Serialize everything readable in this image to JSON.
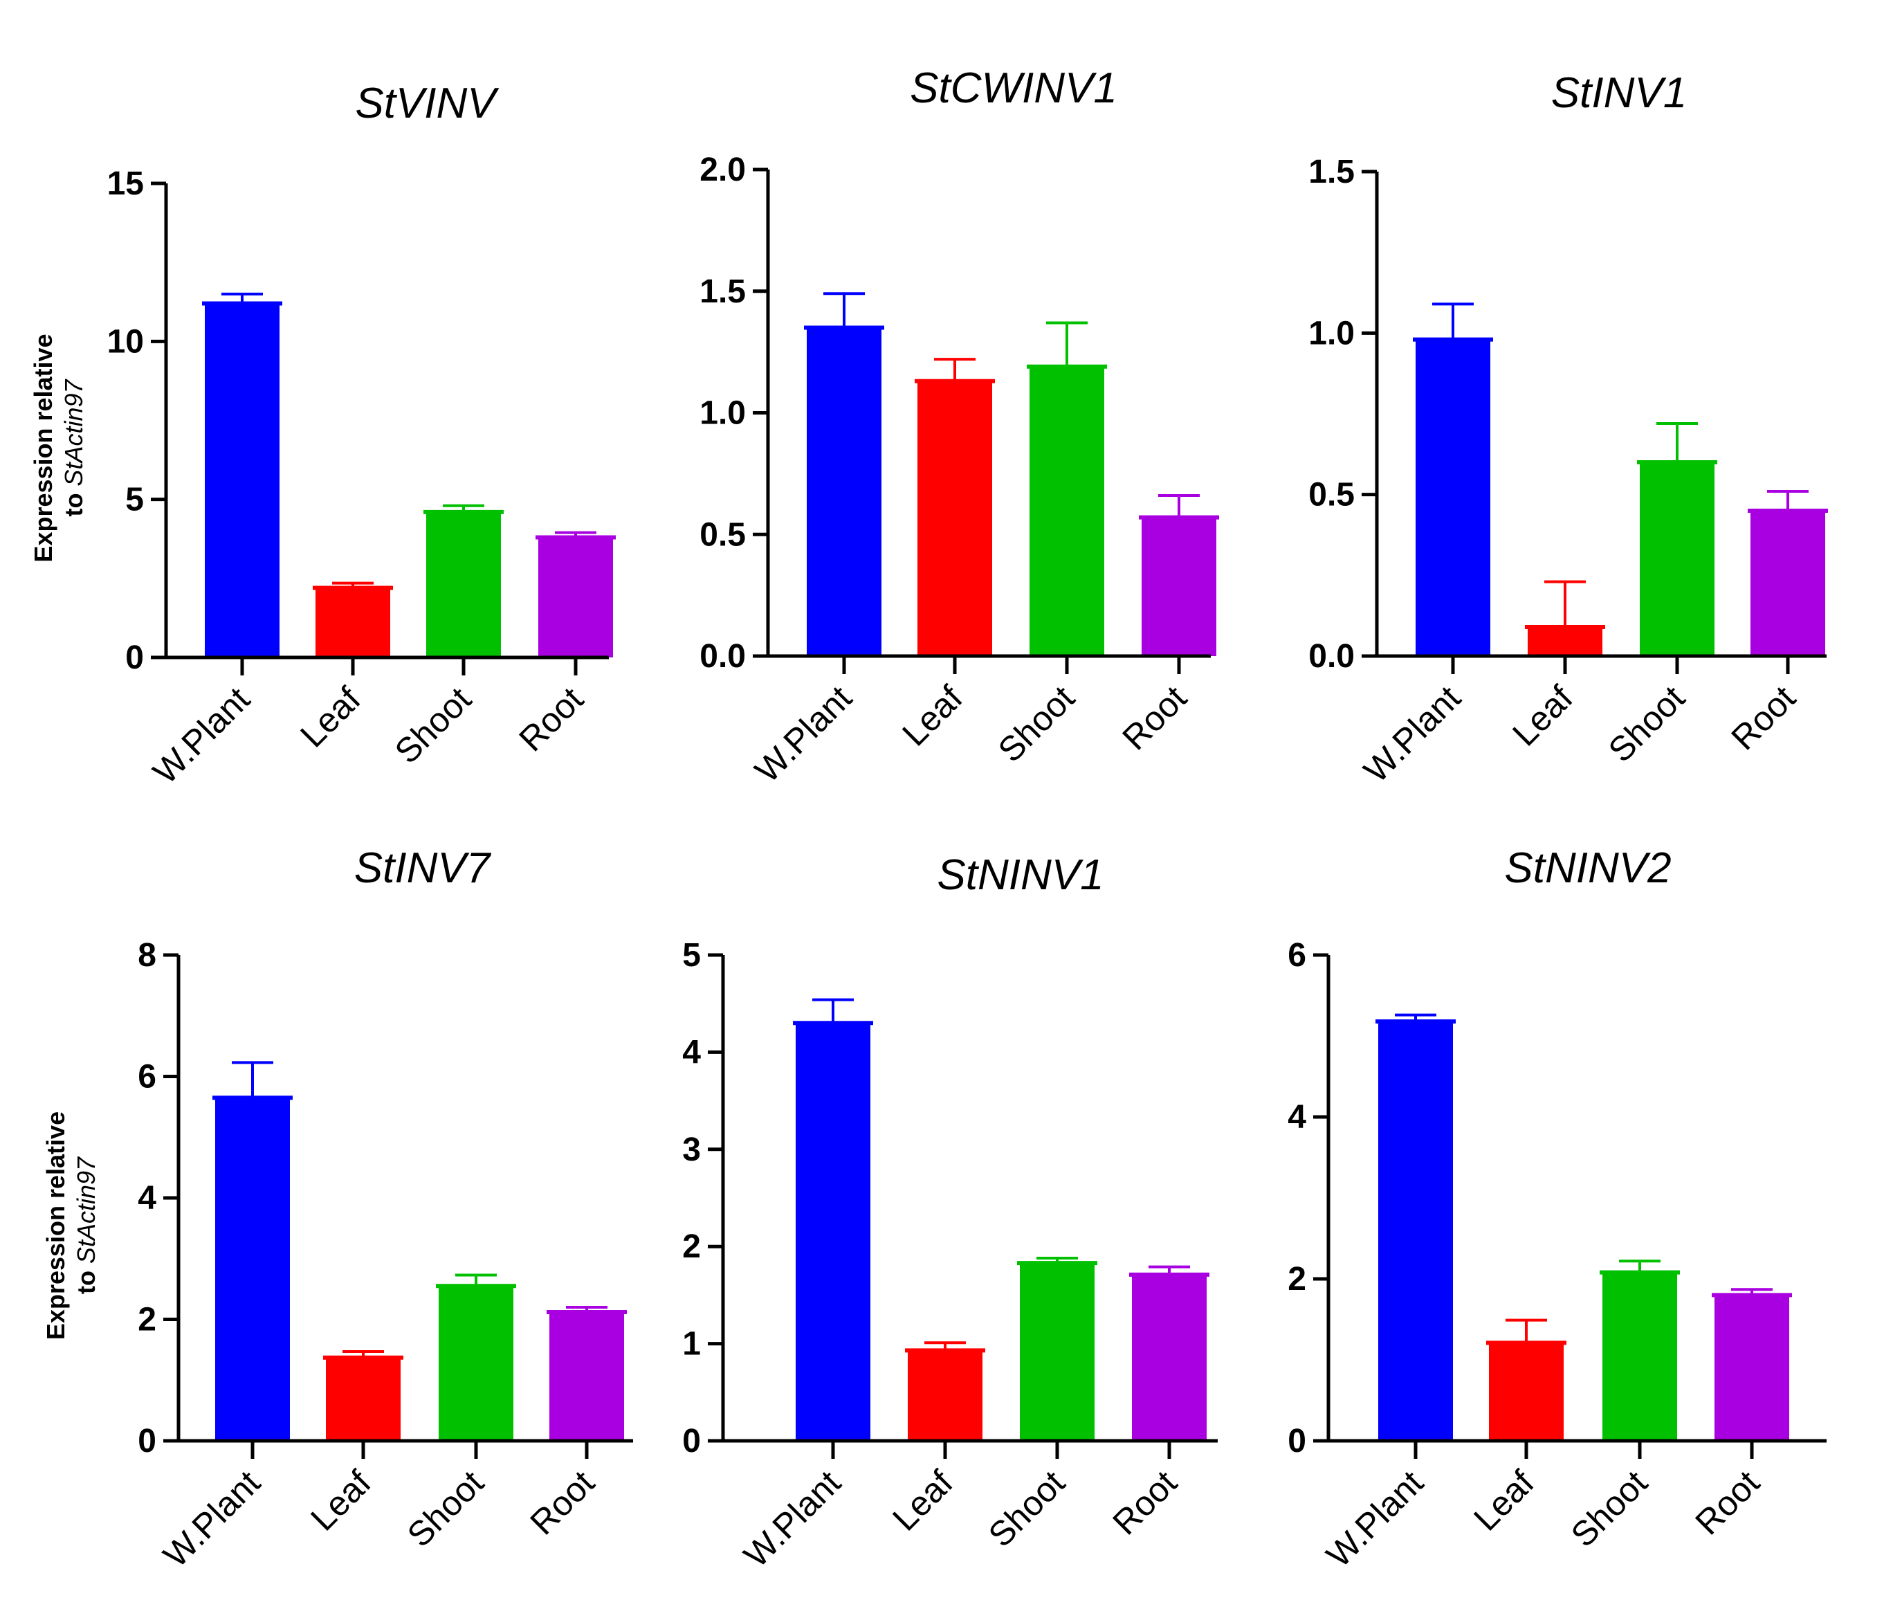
{
  "chart_data": [
    {
      "type": "bar",
      "title": "StVINV",
      "ylabel": [
        "Expression relative",
        "to ",
        "StActin97"
      ],
      "categories": [
        "W.Plant",
        "Leaf",
        "Shoot",
        "Root"
      ],
      "values": [
        11.2,
        2.2,
        4.6,
        3.8
      ],
      "errors": [
        0.3,
        0.15,
        0.2,
        0.15
      ],
      "yticks": [
        "0",
        "5",
        "10",
        "15"
      ],
      "ylim": [
        0,
        15
      ],
      "colors": [
        "#0000ff",
        "#ff0000",
        "#00c000",
        "#a800e0"
      ]
    },
    {
      "type": "bar",
      "title": "StCWINV1",
      "ylabel": null,
      "categories": [
        "W.Plant",
        "Leaf",
        "Shoot",
        "Root"
      ],
      "values": [
        1.35,
        1.13,
        1.19,
        0.57
      ],
      "errors": [
        0.14,
        0.09,
        0.18,
        0.09
      ],
      "yticks": [
        "0.0",
        "0.5",
        "1.0",
        "1.5",
        "2.0"
      ],
      "ylim": [
        0,
        2.0
      ],
      "colors": [
        "#0000ff",
        "#ff0000",
        "#00c000",
        "#a800e0"
      ]
    },
    {
      "type": "bar",
      "title": "StINV1",
      "ylabel": null,
      "categories": [
        "W.Plant",
        "Leaf",
        "Shoot",
        "Root"
      ],
      "values": [
        0.98,
        0.09,
        0.6,
        0.45
      ],
      "errors": [
        0.11,
        0.14,
        0.12,
        0.06
      ],
      "yticks": [
        "0.0",
        "0.5",
        "1.0",
        "1.5"
      ],
      "ylim": [
        0,
        1.5
      ],
      "colors": [
        "#0000ff",
        "#ff0000",
        "#00c000",
        "#a800e0"
      ]
    },
    {
      "type": "bar",
      "title": "StINV7",
      "ylabel": [
        "Expression relative",
        "to ",
        "StActin97"
      ],
      "categories": [
        "W.Plant",
        "Leaf",
        "Shoot",
        "Root"
      ],
      "values": [
        5.65,
        1.37,
        2.55,
        2.12
      ],
      "errors": [
        0.58,
        0.1,
        0.18,
        0.08
      ],
      "yticks": [
        "0",
        "2",
        "4",
        "6",
        "8"
      ],
      "ylim": [
        0,
        8
      ],
      "colors": [
        "#0000ff",
        "#ff0000",
        "#00c000",
        "#a800e0"
      ]
    },
    {
      "type": "bar",
      "title": "StNINV1",
      "ylabel": null,
      "categories": [
        "W.Plant",
        "Leaf",
        "Shoot",
        "Root"
      ],
      "values": [
        4.3,
        0.93,
        1.83,
        1.71
      ],
      "errors": [
        0.24,
        0.08,
        0.05,
        0.08
      ],
      "yticks": [
        "0",
        "1",
        "2",
        "3",
        "4",
        "5"
      ],
      "ylim": [
        0,
        5
      ],
      "colors": [
        "#0000ff",
        "#ff0000",
        "#00c000",
        "#a800e0"
      ]
    },
    {
      "type": "bar",
      "title": "StNINV2",
      "ylabel": null,
      "categories": [
        "W.Plant",
        "Leaf",
        "Shoot",
        "Root"
      ],
      "values": [
        5.18,
        1.21,
        2.08,
        1.8
      ],
      "errors": [
        0.08,
        0.28,
        0.14,
        0.07
      ],
      "yticks": [
        "0",
        "2",
        "4",
        "6"
      ],
      "ylim": [
        0,
        6
      ],
      "colors": [
        "#0000ff",
        "#ff0000",
        "#00c000",
        "#a800e0"
      ]
    }
  ]
}
